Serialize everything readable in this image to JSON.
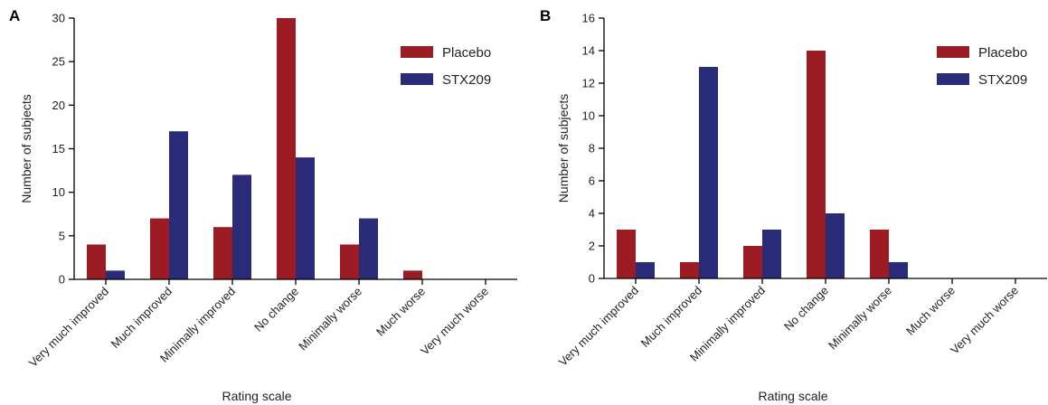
{
  "colors": {
    "placebo": "#9b1c22",
    "stx209": "#2a2c7a"
  },
  "chart_data": [
    {
      "type": "bar",
      "panel": "A",
      "categories": [
        "Very much improved",
        "Much improved",
        "Minimally improved",
        "No change",
        "Minimally worse",
        "Much worse",
        "Very much worse"
      ],
      "series": [
        {
          "name": "Placebo",
          "values": [
            4,
            7,
            6,
            30,
            4,
            1,
            0
          ]
        },
        {
          "name": "STX209",
          "values": [
            1,
            17,
            12,
            14,
            7,
            0,
            0
          ]
        }
      ],
      "xlabel": "Rating  scale",
      "ylabel": "Number of subjects",
      "ylim": [
        0,
        30
      ],
      "yticks": [
        "0",
        "5",
        "10",
        "15",
        "20",
        "25",
        "30"
      ],
      "legend_position": "top-right",
      "grid": false
    },
    {
      "type": "bar",
      "panel": "B",
      "categories": [
        "Very much improved",
        "Much improved",
        "Minimally improved",
        "No change",
        "Minimally worse",
        "Much worse",
        "Very much worse"
      ],
      "series": [
        {
          "name": "Placebo",
          "values": [
            3,
            1,
            2,
            14,
            3,
            0,
            0
          ]
        },
        {
          "name": "STX209",
          "values": [
            1,
            13,
            3,
            4,
            1,
            0,
            0
          ]
        }
      ],
      "xlabel": "Rating  scale",
      "ylabel": "Number of subjects",
      "ylim": [
        0,
        16
      ],
      "yticks": [
        "0",
        "2",
        "4",
        "6",
        "8",
        "10",
        "12",
        "14",
        "16"
      ],
      "legend_position": "top-right",
      "grid": false
    }
  ]
}
